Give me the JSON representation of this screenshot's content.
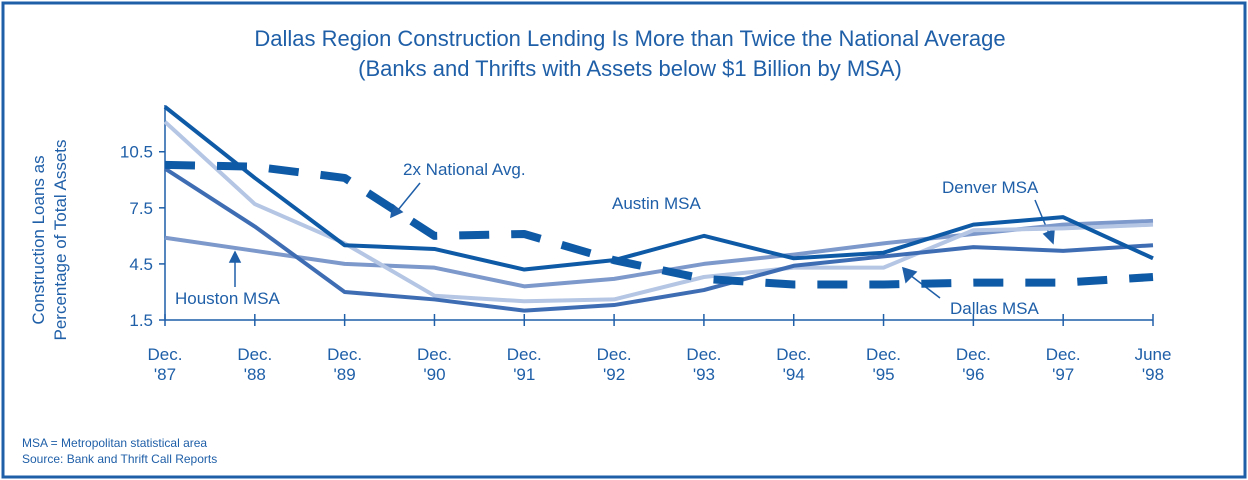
{
  "chart_data": {
    "type": "line",
    "title": "Dallas Region Construction Lending Is More than Twice the National Average",
    "subtitle": "(Banks and Thrifts with Assets below $1 Billion by MSA)",
    "y_label": [
      "Construction Loans as",
      "Percentage of Total Assets"
    ],
    "categories": [
      "Dec. '87",
      "Dec. '88",
      "Dec. '89",
      "Dec. '90",
      "Dec. '91",
      "Dec. '92",
      "Dec. '93",
      "Dec. '94",
      "Dec. '95",
      "Dec. '96",
      "Dec. '97",
      "June '98"
    ],
    "ylim": [
      1.5,
      13
    ],
    "yticks": [
      1.5,
      4.5,
      7.5,
      10.5
    ],
    "series": [
      {
        "name": "Houston MSA",
        "color": "#7d98cb",
        "dash": false,
        "values": [
          5.9,
          5.2,
          4.5,
          4.3,
          3.3,
          3.7,
          4.5,
          5.0,
          5.6,
          6.1,
          6.6,
          6.8
        ]
      },
      {
        "name": "Dallas MSA",
        "color": "#b4c6e4",
        "dash": false,
        "values": [
          12.1,
          7.7,
          5.6,
          2.8,
          2.5,
          2.6,
          3.8,
          4.3,
          4.3,
          6.3,
          6.4,
          6.6
        ]
      },
      {
        "name": "Denver MSA",
        "color": "#3f6db4",
        "dash": false,
        "values": [
          9.6,
          6.5,
          3.0,
          2.6,
          2.0,
          2.3,
          3.1,
          4.4,
          4.9,
          5.4,
          5.2,
          5.5
        ]
      },
      {
        "name": "Austin MSA",
        "color": "#0f5aa6",
        "dash": false,
        "values": [
          12.9,
          9.1,
          5.5,
          5.3,
          4.2,
          4.7,
          6.0,
          4.8,
          5.1,
          6.6,
          7.0,
          4.8
        ]
      },
      {
        "name": "2x National Avg.",
        "color": "#0f5aa6",
        "dash": true,
        "values": [
          9.8,
          9.7,
          9.1,
          6.0,
          6.1,
          4.7,
          3.7,
          3.4,
          3.4,
          3.5,
          3.5,
          3.8
        ]
      }
    ],
    "notes": [
      "MSA = Metropolitan statistical area",
      "Source: Bank and Thrift Call Reports"
    ]
  }
}
